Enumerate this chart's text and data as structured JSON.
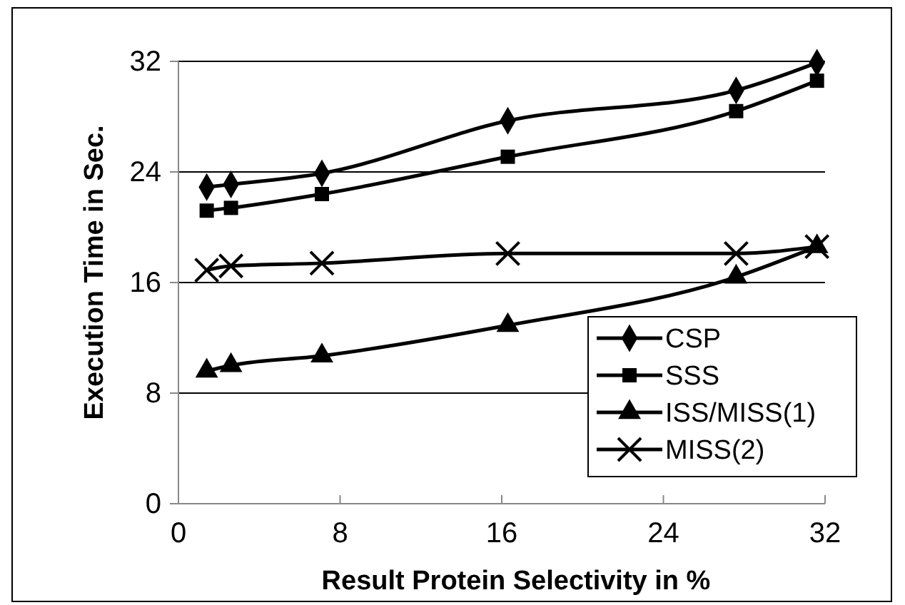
{
  "chart_data": {
    "type": "line",
    "xlabel": "Result Protein Selectivity in %",
    "ylabel": "Execution Time in Sec.",
    "x": [
      1.4,
      2.6,
      7.1,
      16.3,
      27.6,
      31.6
    ],
    "series": [
      {
        "name": "CSP",
        "color": "#000000",
        "marker": "diamond",
        "values": [
          22.9,
          23.1,
          23.9,
          27.7,
          29.9,
          31.9
        ]
      },
      {
        "name": "SSS",
        "color": "#000000",
        "marker": "square",
        "values": [
          21.2,
          21.4,
          22.4,
          25.1,
          28.4,
          30.6
        ]
      },
      {
        "name": "ISS/MISS(1)",
        "color": "#000000",
        "marker": "triangle",
        "values": [
          9.6,
          10.0,
          10.7,
          12.9,
          16.4,
          18.6
        ]
      },
      {
        "name": "MISS(2)",
        "color": "#000000",
        "marker": "cross",
        "values": [
          16.9,
          17.2,
          17.4,
          18.1,
          18.1,
          18.6
        ]
      }
    ],
    "xlim": [
      0,
      32
    ],
    "xticks": [
      0,
      8,
      16,
      24,
      32
    ],
    "ylim": [
      0,
      32
    ],
    "yticks": [
      0,
      8,
      16,
      24,
      32
    ],
    "grid": "y",
    "legend": "bottom right",
    "line_style": "solid"
  }
}
